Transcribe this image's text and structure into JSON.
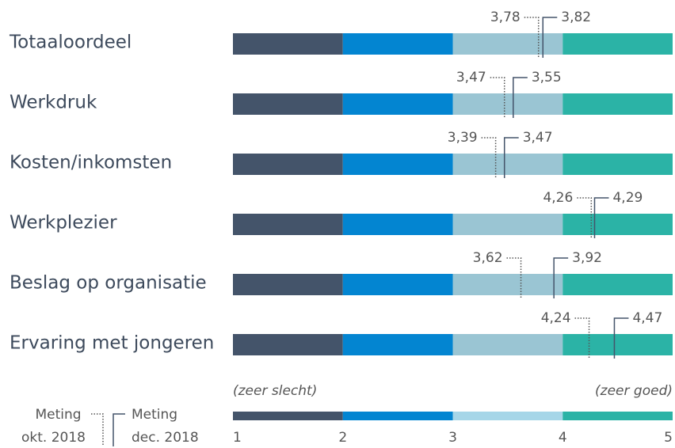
{
  "chart_data": {
    "type": "range-marker",
    "categories": [
      "Totaaloordeel",
      "Werkdruk",
      "Kosten/inkomsten",
      "Werkplezier",
      "Beslag op organisatie",
      "Ervaring met jongeren"
    ],
    "series": [
      {
        "name": "Meting okt. 2018",
        "color": "#555555",
        "style": "dotted",
        "values": [
          3.78,
          3.47,
          3.39,
          4.26,
          3.62,
          4.24
        ],
        "value_labels": [
          "3,78",
          "3,47",
          "3,39",
          "4,26",
          "3,62",
          "4,24"
        ]
      },
      {
        "name": "Meting dec. 2018",
        "color": "#44546a",
        "style": "solid",
        "values": [
          3.82,
          3.55,
          3.47,
          4.29,
          3.92,
          4.47
        ],
        "value_labels": [
          "3,82",
          "3,55",
          "3,47",
          "4,29",
          "3,92",
          "4,47"
        ]
      }
    ],
    "xlim": [
      1,
      5
    ],
    "xticks": [
      1,
      2,
      3,
      4,
      5
    ],
    "band_colors": [
      "#44546a",
      "#0385d1",
      "#9ac5d3",
      "#2bb3a6"
    ],
    "scale_colors": [
      "#44546a",
      "#0385d1",
      "#a6d6e8",
      "#2bb3a6"
    ],
    "annotations": [
      "(zeer slecht)",
      "(zeer goed)"
    ]
  }
}
